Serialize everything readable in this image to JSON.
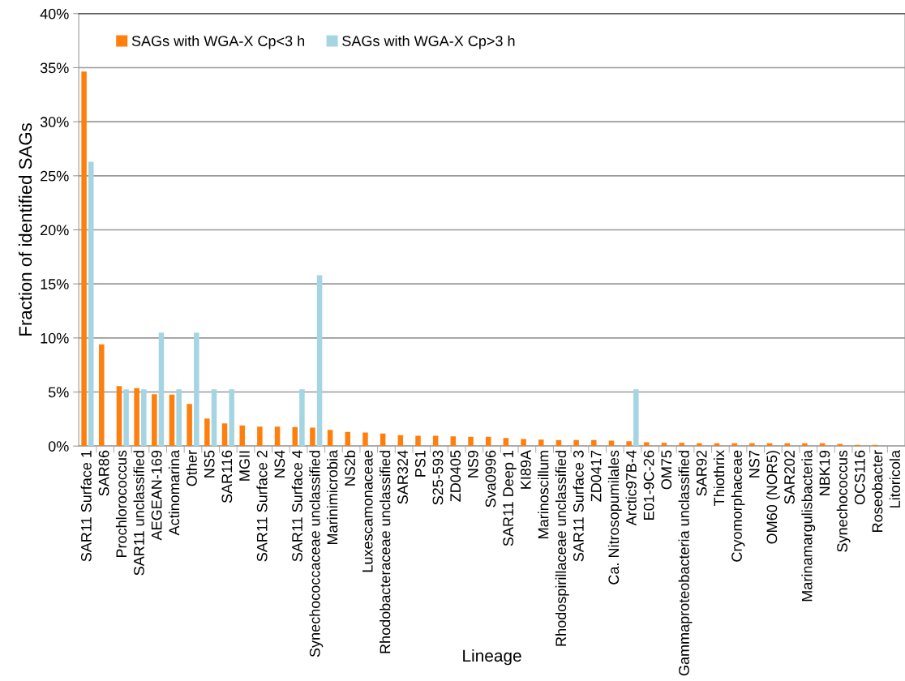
{
  "chart_data": {
    "type": "bar",
    "xlabel": "Lineage",
    "ylabel": "Fraction of identified SAGs",
    "categories": [
      "SAR11 Surface 1",
      "SAR86",
      "Prochlorococcus",
      "SAR11 unclassified",
      "AEGEAN-169",
      "Actinomarina",
      "Other",
      "NS5",
      "SAR116",
      "MGII",
      "SAR11 Surface 2",
      "NS4",
      "SAR11 Surface 4",
      "Synechococcaceae unclassified",
      "Marinimicrobia",
      "NS2b",
      "Luxescamonaceae",
      "Rhodobacteraceae unclassified",
      "SAR324",
      "PS1",
      "S25-593",
      "ZD0405",
      "NS9",
      "Sva0996",
      "SAR11 Deep 1",
      "KI89A",
      "Marinoscillum",
      "Rhodospirillaceae unclassified",
      "SAR11 Surface 3",
      "ZD0417",
      "Ca. Nitrosopumilales",
      "Arctic97B-4",
      "E01-9C-26",
      "OM75",
      "Gammaproteobacteria unclassified",
      "SAR92",
      "Thiothrix",
      "Cryomorphaceae",
      "NS7",
      "OM60 (NOR5)",
      "SAR202",
      "Marinamargulisbacteria",
      "NBK19",
      "Synechococcus",
      "OCS116",
      "Roseobacter",
      "Litoricola"
    ],
    "series": [
      {
        "name": "SAGs with WGA-X Cp<3 h",
        "color": "#ff7f0e",
        "values": [
          34.65,
          9.4,
          5.55,
          5.35,
          4.8,
          4.75,
          3.9,
          2.55,
          2.1,
          1.9,
          1.8,
          1.8,
          1.75,
          1.7,
          1.5,
          1.3,
          1.25,
          1.15,
          1.0,
          0.95,
          0.95,
          0.9,
          0.85,
          0.85,
          0.75,
          0.65,
          0.6,
          0.55,
          0.55,
          0.55,
          0.5,
          0.45,
          0.35,
          0.3,
          0.3,
          0.25,
          0.25,
          0.25,
          0.25,
          0.25,
          0.25,
          0.25,
          0.25,
          0.2,
          0.1,
          0.1,
          0
        ]
      },
      {
        "name": "SAGs with WGA-X Cp>3 h",
        "color": "#a5d5e2",
        "values": [
          26.3,
          null,
          5.25,
          5.25,
          10.5,
          5.25,
          10.5,
          5.25,
          5.25,
          null,
          null,
          null,
          5.25,
          15.8,
          null,
          null,
          null,
          null,
          null,
          null,
          null,
          null,
          null,
          null,
          null,
          null,
          null,
          null,
          null,
          null,
          null,
          5.25,
          null,
          null,
          null,
          null,
          null,
          null,
          null,
          null,
          null,
          null,
          null,
          null,
          null,
          null,
          null
        ]
      }
    ],
    "ylim": [
      0,
      40
    ],
    "yticks": [
      {
        "value": 0,
        "label": "0%"
      },
      {
        "value": 5,
        "label": "5%"
      },
      {
        "value": 10,
        "label": "10%"
      },
      {
        "value": 15,
        "label": "15%"
      },
      {
        "value": 20,
        "label": "20%"
      },
      {
        "value": 25,
        "label": "25%"
      },
      {
        "value": 30,
        "label": "30%"
      },
      {
        "value": 35,
        "label": "35%"
      },
      {
        "value": 40,
        "label": "40%"
      }
    ],
    "grid": "y",
    "legend": "top left"
  }
}
